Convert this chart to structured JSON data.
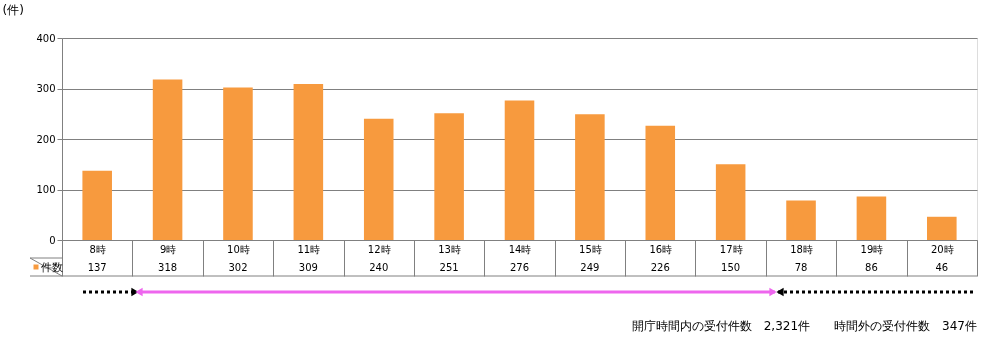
{
  "chart_data": {
    "type": "bar",
    "ylabel": "(件)",
    "categories": [
      "8時",
      "9時",
      "10時",
      "11時",
      "12時",
      "13時",
      "14時",
      "15時",
      "16時",
      "17時",
      "18時",
      "19時",
      "20時"
    ],
    "series": [
      {
        "name": "件数",
        "color": "#f79a3e",
        "values": [
          137,
          318,
          302,
          309,
          240,
          251,
          276,
          249,
          226,
          150,
          78,
          86,
          46
        ]
      }
    ],
    "ylim": [
      0,
      400
    ],
    "yticks": [
      0,
      100,
      200,
      300,
      400
    ],
    "grid": "y",
    "legend": "bottom",
    "data_labels": true,
    "annotations": [
      "開庁時間内の受付件数　2,321件　　時間外の受付件数　347件"
    ]
  }
}
